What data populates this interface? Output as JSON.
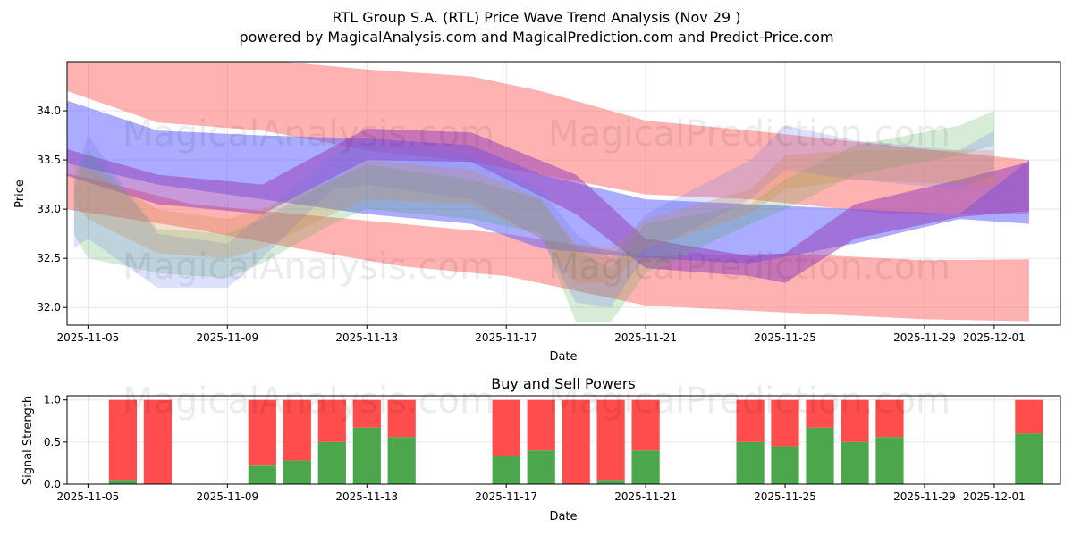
{
  "chart_data": [
    {
      "type": "area",
      "title": "RTL Group S.A. (RTL) Price Wave Trend Analysis (Nov 29 )",
      "subtitle": "powered by MagicalAnalysis.com and MagicalPrediction.com and Predict-Price.com",
      "xlabel": "Date",
      "ylabel": "Price",
      "ylim": [
        31.82,
        34.5
      ],
      "xlim_days": [
        -0.6,
        27.9
      ],
      "x_origin": "2025-11-05",
      "xticks": [
        {
          "day": 0,
          "label": "2025-11-05"
        },
        {
          "day": 4,
          "label": "2025-11-09"
        },
        {
          "day": 8,
          "label": "2025-11-13"
        },
        {
          "day": 12,
          "label": "2025-11-17"
        },
        {
          "day": 16,
          "label": "2025-11-21"
        },
        {
          "day": 20,
          "label": "2025-11-25"
        },
        {
          "day": 24,
          "label": "2025-11-29"
        },
        {
          "day": 26,
          "label": "2025-12-01"
        }
      ],
      "yticks": [
        32.0,
        32.5,
        33.0,
        33.5,
        34.0
      ],
      "grid": true,
      "bands": [
        {
          "name": "red upper band",
          "color": "#ff6666",
          "opacity": 0.5,
          "x": [
            -1,
            2,
            5,
            8,
            11,
            13,
            16,
            19,
            23,
            27
          ],
          "upper": [
            34.65,
            34.57,
            34.52,
            34.42,
            34.35,
            34.2,
            33.9,
            33.8,
            33.65,
            33.5
          ],
          "lower": [
            34.25,
            33.88,
            33.8,
            33.6,
            33.48,
            33.35,
            33.15,
            33.1,
            32.95,
            32.95
          ]
        },
        {
          "name": "red lower band",
          "color": "#ff6666",
          "opacity": 0.5,
          "x": [
            -1,
            3,
            6,
            9,
            12,
            16,
            20,
            24,
            27
          ],
          "upper": [
            33.4,
            33.05,
            32.95,
            32.85,
            32.75,
            32.52,
            32.55,
            32.48,
            32.49
          ],
          "lower": [
            33.02,
            32.8,
            32.6,
            32.42,
            32.32,
            32.02,
            31.95,
            31.88,
            31.86
          ]
        },
        {
          "name": "blue trend band",
          "color": "#6666ff",
          "opacity": 0.55,
          "x": [
            -1,
            2,
            5,
            8,
            11,
            13,
            16,
            19,
            22,
            25,
            27
          ],
          "upper": [
            34.15,
            33.8,
            33.75,
            33.72,
            33.65,
            33.35,
            33.1,
            33.05,
            33.0,
            32.95,
            33.5
          ],
          "lower": [
            33.5,
            33.25,
            33.1,
            32.95,
            32.85,
            32.6,
            32.5,
            32.45,
            32.65,
            32.9,
            32.85
          ]
        },
        {
          "name": "purple trend band",
          "color": "#9944bb",
          "opacity": 0.55,
          "x": [
            -0.7,
            2,
            5,
            8,
            11,
            14,
            16,
            19,
            20,
            22,
            25,
            27
          ],
          "upper": [
            33.62,
            33.35,
            33.25,
            33.82,
            33.78,
            33.35,
            32.7,
            32.52,
            32.55,
            33.05,
            33.3,
            33.48
          ],
          "lower": [
            33.35,
            33.05,
            32.95,
            33.5,
            33.48,
            32.95,
            32.4,
            32.32,
            32.25,
            32.7,
            32.92,
            32.98
          ]
        },
        {
          "name": "green wave band",
          "color": "#44aa44",
          "opacity": 0.22,
          "x": [
            -0.4,
            0,
            2,
            4,
            5,
            7,
            8,
            11,
            13,
            14,
            15,
            16,
            19,
            20,
            22,
            25,
            26
          ],
          "upper": [
            33.2,
            33.6,
            32.8,
            32.75,
            32.9,
            33.3,
            33.45,
            33.3,
            33.1,
            32.6,
            32.4,
            32.85,
            33.05,
            33.3,
            33.65,
            33.85,
            34.0
          ],
          "lower": [
            32.75,
            32.5,
            32.35,
            32.3,
            32.45,
            32.85,
            33.0,
            32.9,
            32.75,
            31.85,
            31.85,
            32.35,
            32.85,
            33.0,
            33.35,
            33.55,
            33.65
          ]
        },
        {
          "name": "light blue wave band",
          "color": "#6677ee",
          "opacity": 0.22,
          "x": [
            -0.4,
            0,
            2,
            4,
            5,
            7,
            8,
            11,
            13,
            14,
            15,
            16,
            19,
            20,
            22,
            25,
            26
          ],
          "upper": [
            33.3,
            33.75,
            32.75,
            32.65,
            32.95,
            33.55,
            33.7,
            33.55,
            33.2,
            32.75,
            32.5,
            32.95,
            33.5,
            33.85,
            33.7,
            33.6,
            33.8
          ],
          "lower": [
            32.6,
            32.7,
            32.2,
            32.2,
            32.5,
            33.2,
            33.25,
            33.1,
            32.7,
            32.05,
            32.0,
            32.55,
            33.1,
            33.4,
            33.3,
            33.2,
            33.35
          ]
        },
        {
          "name": "orange wave band",
          "color": "#cc8844",
          "opacity": 0.25,
          "x": [
            -0.4,
            0,
            2,
            4,
            5,
            7,
            8,
            11,
            13,
            14,
            15,
            16,
            19,
            20,
            22,
            25,
            26
          ],
          "upper": [
            33.45,
            33.4,
            33.0,
            32.9,
            33.0,
            33.3,
            33.5,
            33.4,
            33.1,
            32.65,
            32.6,
            32.9,
            33.2,
            33.55,
            33.6,
            33.6,
            33.6
          ],
          "lower": [
            33.05,
            32.9,
            32.55,
            32.5,
            32.6,
            32.95,
            33.1,
            33.05,
            32.7,
            32.25,
            32.25,
            32.6,
            32.95,
            33.2,
            33.3,
            33.25,
            33.25
          ]
        }
      ]
    },
    {
      "type": "bar",
      "title": "Buy and Sell Powers",
      "xlabel": "Date",
      "ylabel": "Signal Strength",
      "ylim": [
        0,
        1.05
      ],
      "xlim_days": [
        -0.6,
        27.9
      ],
      "xticks": [
        {
          "day": 0,
          "label": "2025-11-05"
        },
        {
          "day": 4,
          "label": "2025-11-09"
        },
        {
          "day": 8,
          "label": "2025-11-13"
        },
        {
          "day": 12,
          "label": "2025-11-17"
        },
        {
          "day": 16,
          "label": "2025-11-21"
        },
        {
          "day": 20,
          "label": "2025-11-25"
        },
        {
          "day": 24,
          "label": "2025-11-29"
        },
        {
          "day": 26,
          "label": "2025-12-01"
        }
      ],
      "yticks": [
        0.0,
        0.5,
        1.0
      ],
      "series": [
        {
          "name": "Buy",
          "color": "#4ca64c"
        },
        {
          "name": "Sell",
          "color": "#ff4c4c"
        }
      ],
      "bars": [
        {
          "date": "2025-11-06",
          "day": 1,
          "buy": 0.05
        },
        {
          "date": "2025-11-07",
          "day": 2,
          "buy": 0.0
        },
        {
          "date": "2025-11-10",
          "day": 5,
          "buy": 0.22
        },
        {
          "date": "2025-11-11",
          "day": 6,
          "buy": 0.28
        },
        {
          "date": "2025-11-12",
          "day": 7,
          "buy": 0.5
        },
        {
          "date": "2025-11-13",
          "day": 8,
          "buy": 0.67
        },
        {
          "date": "2025-11-14",
          "day": 9,
          "buy": 0.56
        },
        {
          "date": "2025-11-17",
          "day": 12,
          "buy": 0.33
        },
        {
          "date": "2025-11-18",
          "day": 13,
          "buy": 0.4
        },
        {
          "date": "2025-11-19",
          "day": 14,
          "buy": 0.0
        },
        {
          "date": "2025-11-20",
          "day": 15,
          "buy": 0.05
        },
        {
          "date": "2025-11-21",
          "day": 16,
          "buy": 0.4
        },
        {
          "date": "2025-11-24",
          "day": 19,
          "buy": 0.5
        },
        {
          "date": "2025-11-25",
          "day": 20,
          "buy": 0.45
        },
        {
          "date": "2025-11-26",
          "day": 21,
          "buy": 0.67
        },
        {
          "date": "2025-11-27",
          "day": 22,
          "buy": 0.5
        },
        {
          "date": "2025-11-28",
          "day": 23,
          "buy": 0.56
        },
        {
          "date": "2025-12-02",
          "day": 27,
          "buy": 0.6
        }
      ]
    }
  ],
  "watermarks": {
    "left": "MagicalAnalysis.com",
    "right": "MagicalPrediction.com"
  }
}
